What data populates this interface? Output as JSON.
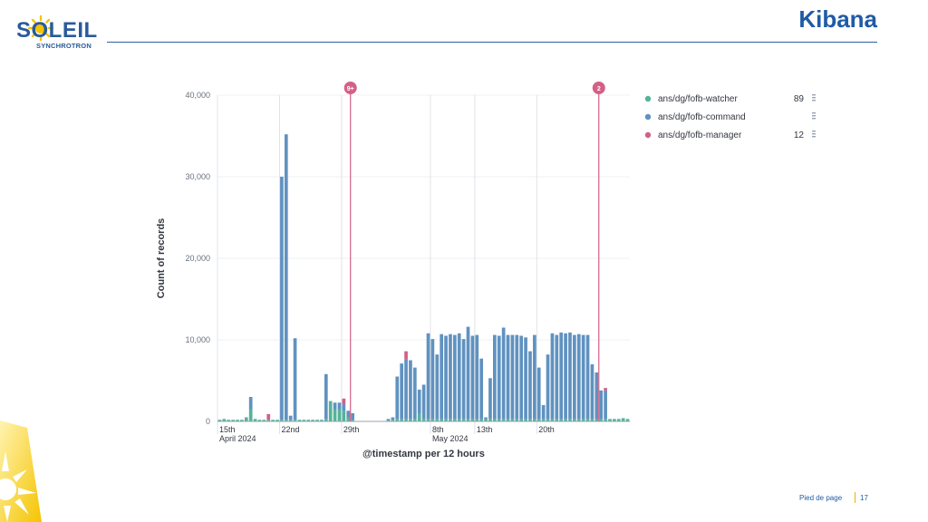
{
  "header": {
    "logo_text": "SOLEIL",
    "logo_subtext": "SYNCHROTRON",
    "title": "Kibana"
  },
  "footer": {
    "label": "Pied de page",
    "page_number": "17"
  },
  "colors": {
    "accent": "#1f5ba6",
    "watcher": "#54b399",
    "command": "#6092c0",
    "manager": "#d36086",
    "annotation": "#e7664c",
    "sun": "#f5c400"
  },
  "chart_data": {
    "type": "bar",
    "stacked": true,
    "ylabel": "Count of records",
    "xlabel": "@timestamp per 12 hours",
    "ylim": [
      0,
      40000
    ],
    "y_ticks": [
      "0",
      "10,000",
      "20,000",
      "30,000",
      "40,000"
    ],
    "x_ticks": [
      {
        "label": "15th",
        "sub": "April 2024",
        "bin": 0
      },
      {
        "label": "22nd",
        "sub": "",
        "bin": 14
      },
      {
        "label": "29th",
        "sub": "",
        "bin": 28
      },
      {
        "label": "8th",
        "sub": "May 2024",
        "bin": 46
      },
      {
        "label": "13th",
        "sub": "",
        "bin": 56
      },
      {
        "label": "20th",
        "sub": "",
        "bin": 70
      }
    ],
    "gap_after_bin": 34,
    "legend": [
      {
        "name": "ans/dg/fofb-watcher",
        "count": "89",
        "color_key": "watcher"
      },
      {
        "name": "ans/dg/fofb-command",
        "count": "",
        "color_key": "command"
      },
      {
        "name": "ans/dg/fofb-manager",
        "count": "12",
        "color_key": "manager"
      }
    ],
    "legend_position": "right",
    "annotations": [
      {
        "label": "9+",
        "bin": 30
      },
      {
        "label": "2",
        "bin": 84
      }
    ],
    "series": [
      {
        "name": "ans/dg/fofb-watcher",
        "values": [
          200,
          300,
          200,
          200,
          200,
          200,
          400,
          1500,
          300,
          200,
          200,
          200,
          200,
          200,
          200,
          200,
          200,
          200,
          200,
          200,
          200,
          200,
          200,
          200,
          300,
          2500,
          1500,
          1500,
          1300,
          500,
          200,
          0,
          0,
          0,
          0,
          0,
          100,
          200,
          300,
          300,
          300,
          300,
          300,
          1000,
          300,
          300,
          300,
          300,
          300,
          300,
          300,
          300,
          300,
          300,
          300,
          300,
          300,
          300,
          300,
          300,
          300,
          300,
          300,
          300,
          300,
          300,
          300,
          300,
          300,
          300,
          300,
          300,
          300,
          300,
          300,
          300,
          300,
          300,
          300,
          300,
          300,
          300,
          300,
          300,
          300,
          300,
          300,
          300,
          300,
          400,
          300
        ]
      },
      {
        "name": "ans/dg/fofb-command",
        "values": [
          0,
          0,
          0,
          0,
          0,
          0,
          100,
          1500,
          0,
          0,
          0,
          0,
          0,
          0,
          29800,
          35000,
          500,
          10000,
          0,
          0,
          0,
          0,
          0,
          0,
          5500,
          0,
          800,
          800,
          800,
          800,
          800,
          0,
          0,
          0,
          0,
          0,
          200,
          300,
          5200,
          6800,
          7300,
          7200,
          6300,
          2900,
          4200,
          10500,
          9800,
          7900,
          10400,
          10200,
          10400,
          10300,
          10500,
          9800,
          11300,
          10200,
          10300,
          7400,
          200,
          5000,
          10300,
          10200,
          11200,
          10300,
          10300,
          10300,
          10200,
          10000,
          8300,
          10300,
          6300,
          1700,
          7900,
          10500,
          10300,
          10600,
          10500,
          10600,
          10300,
          10400,
          10300,
          10300,
          6700,
          5700,
          3500,
          3500,
          0
        ]
      },
      {
        "name": "ans/dg/fofb-manager",
        "values": [
          0,
          0,
          0,
          0,
          0,
          0,
          0,
          0,
          0,
          0,
          0,
          700,
          0,
          0,
          0,
          0,
          0,
          0,
          0,
          0,
          0,
          0,
          0,
          0,
          0,
          0,
          0,
          0,
          700,
          0,
          0,
          0,
          0,
          0,
          0,
          0,
          0,
          0,
          0,
          0,
          1000,
          0,
          0,
          0,
          0,
          0,
          0,
          0,
          0,
          0,
          0,
          0,
          0,
          0,
          0,
          0,
          0,
          0,
          0,
          0,
          0,
          0,
          0,
          0,
          0,
          0,
          0,
          0,
          0,
          0,
          0,
          0,
          0,
          0,
          0,
          0,
          0,
          0,
          0,
          0,
          0,
          0,
          0,
          0,
          0,
          300,
          0
        ]
      }
    ]
  }
}
